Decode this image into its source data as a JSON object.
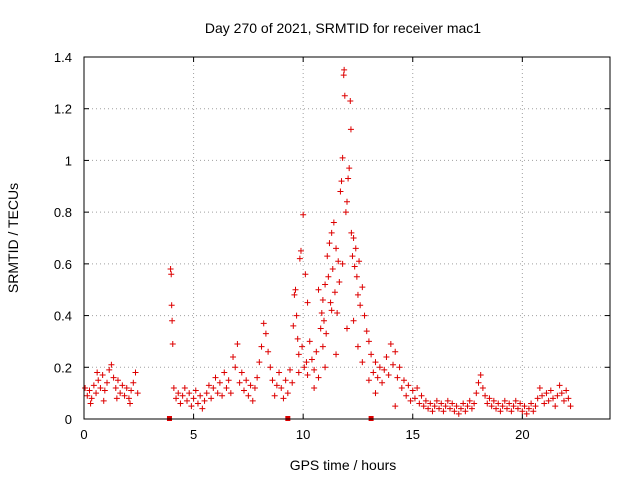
{
  "chart_data": {
    "type": "scatter",
    "title": "Day 270 of 2021, SRMTID for receiver mac1",
    "xlabel": "GPS time / hours",
    "ylabel": "SRMTID / TECUs",
    "xlim": [
      0,
      24
    ],
    "ylim": [
      0,
      1.4
    ],
    "xticks": [
      0,
      5,
      10,
      15,
      20
    ],
    "yticks": [
      0,
      0.2,
      0.4,
      0.6,
      0.8,
      1,
      1.2,
      1.4
    ],
    "xtick_labels": [
      "0",
      "5",
      "10",
      "15",
      "20"
    ],
    "ytick_labels": [
      "0",
      "0.2",
      "0.4",
      "0.6",
      "0.8",
      "1",
      "1.2",
      "1.4"
    ],
    "grid": true,
    "marker": "+",
    "color": "#dd0000",
    "data_gap_markers_x": [
      3.9,
      9.3,
      13.1
    ],
    "series": [
      {
        "name": "SRMTID",
        "points": [
          [
            0.05,
            0.12
          ],
          [
            0.15,
            0.09
          ],
          [
            0.25,
            0.11
          ],
          [
            0.35,
            0.08
          ],
          [
            0.45,
            0.13
          ],
          [
            0.55,
            0.1
          ],
          [
            0.65,
            0.15
          ],
          [
            0.75,
            0.12
          ],
          [
            0.85,
            0.17
          ],
          [
            0.95,
            0.11
          ],
          [
            1.05,
            0.14
          ],
          [
            1.15,
            0.19
          ],
          [
            1.25,
            0.21
          ],
          [
            1.35,
            0.16
          ],
          [
            1.45,
            0.12
          ],
          [
            1.55,
            0.15
          ],
          [
            1.65,
            0.1
          ],
          [
            1.75,
            0.13
          ],
          [
            1.85,
            0.09
          ],
          [
            1.95,
            0.12
          ],
          [
            2.05,
            0.08
          ],
          [
            2.15,
            0.11
          ],
          [
            2.25,
            0.14
          ],
          [
            2.35,
            0.18
          ],
          [
            2.45,
            0.1
          ],
          [
            0.3,
            0.06
          ],
          [
            0.9,
            0.07
          ],
          [
            1.5,
            0.08
          ],
          [
            2.1,
            0.06
          ],
          [
            0.6,
            0.18
          ],
          [
            3.95,
            0.58
          ],
          [
            3.98,
            0.56
          ],
          [
            4.0,
            0.44
          ],
          [
            4.02,
            0.38
          ],
          [
            4.05,
            0.29
          ],
          [
            4.1,
            0.12
          ],
          [
            4.2,
            0.08
          ],
          [
            4.3,
            0.1
          ],
          [
            4.4,
            0.06
          ],
          [
            4.5,
            0.09
          ],
          [
            4.6,
            0.12
          ],
          [
            4.7,
            0.07
          ],
          [
            4.8,
            0.1
          ],
          [
            4.9,
            0.05
          ],
          [
            5.0,
            0.08
          ],
          [
            5.1,
            0.11
          ],
          [
            5.2,
            0.06
          ],
          [
            5.3,
            0.09
          ],
          [
            5.4,
            0.04
          ],
          [
            5.5,
            0.07
          ],
          [
            5.6,
            0.1
          ],
          [
            5.7,
            0.13
          ],
          [
            5.8,
            0.08
          ],
          [
            5.9,
            0.12
          ],
          [
            6.0,
            0.16
          ],
          [
            6.1,
            0.1
          ],
          [
            6.2,
            0.14
          ],
          [
            6.3,
            0.09
          ],
          [
            6.4,
            0.18
          ],
          [
            6.5,
            0.12
          ],
          [
            6.6,
            0.15
          ],
          [
            6.7,
            0.1
          ],
          [
            6.8,
            0.24
          ],
          [
            6.9,
            0.2
          ],
          [
            7.0,
            0.29
          ],
          [
            7.1,
            0.14
          ],
          [
            7.2,
            0.18
          ],
          [
            7.3,
            0.11
          ],
          [
            7.4,
            0.15
          ],
          [
            7.5,
            0.09
          ],
          [
            7.6,
            0.13
          ],
          [
            7.7,
            0.07
          ],
          [
            7.8,
            0.12
          ],
          [
            7.9,
            0.16
          ],
          [
            8.0,
            0.22
          ],
          [
            8.1,
            0.28
          ],
          [
            8.2,
            0.37
          ],
          [
            8.3,
            0.33
          ],
          [
            8.4,
            0.26
          ],
          [
            8.5,
            0.2
          ],
          [
            8.6,
            0.15
          ],
          [
            8.7,
            0.09
          ],
          [
            8.8,
            0.13
          ],
          [
            8.9,
            0.18
          ],
          [
            9.0,
            0.12
          ],
          [
            9.1,
            0.08
          ],
          [
            9.2,
            0.15
          ],
          [
            9.3,
            0.1
          ],
          [
            9.4,
            0.19
          ],
          [
            9.5,
            0.14
          ],
          [
            9.55,
            0.36
          ],
          [
            9.6,
            0.48
          ],
          [
            9.65,
            0.5
          ],
          [
            9.7,
            0.4
          ],
          [
            9.75,
            0.31
          ],
          [
            9.8,
            0.25
          ],
          [
            9.85,
            0.62
          ],
          [
            9.9,
            0.65
          ],
          [
            9.95,
            0.28
          ],
          [
            10.0,
            0.79
          ],
          [
            10.05,
            0.2
          ],
          [
            10.1,
            0.56
          ],
          [
            10.15,
            0.22
          ],
          [
            10.2,
            0.17
          ],
          [
            10.3,
            0.3
          ],
          [
            10.4,
            0.23
          ],
          [
            10.5,
            0.19
          ],
          [
            10.6,
            0.26
          ],
          [
            10.7,
            0.16
          ],
          [
            10.8,
            0.35
          ],
          [
            10.85,
            0.41
          ],
          [
            10.9,
            0.46
          ],
          [
            10.95,
            0.38
          ],
          [
            11.0,
            0.52
          ],
          [
            11.05,
            0.33
          ],
          [
            11.1,
            0.63
          ],
          [
            11.15,
            0.55
          ],
          [
            11.2,
            0.68
          ],
          [
            11.25,
            0.45
          ],
          [
            11.3,
            0.72
          ],
          [
            11.35,
            0.58
          ],
          [
            11.4,
            0.76
          ],
          [
            11.45,
            0.49
          ],
          [
            11.5,
            0.66
          ],
          [
            11.55,
            0.41
          ],
          [
            11.6,
            0.61
          ],
          [
            11.65,
            0.53
          ],
          [
            11.7,
            0.88
          ],
          [
            11.75,
            0.92
          ],
          [
            11.8,
            1.01
          ],
          [
            11.85,
            1.33
          ],
          [
            11.87,
            1.35
          ],
          [
            11.9,
            1.25
          ],
          [
            11.95,
            0.8
          ],
          [
            12.0,
            0.84
          ],
          [
            12.05,
            0.93
          ],
          [
            12.1,
            0.97
          ],
          [
            12.15,
            1.23
          ],
          [
            12.18,
            1.12
          ],
          [
            12.2,
            0.72
          ],
          [
            12.25,
            0.63
          ],
          [
            12.3,
            0.7
          ],
          [
            12.35,
            0.59
          ],
          [
            12.4,
            0.66
          ],
          [
            12.45,
            0.55
          ],
          [
            12.5,
            0.48
          ],
          [
            12.55,
            0.61
          ],
          [
            12.6,
            0.44
          ],
          [
            12.7,
            0.51
          ],
          [
            12.8,
            0.4
          ],
          [
            12.9,
            0.34
          ],
          [
            13.0,
            0.3
          ],
          [
            13.1,
            0.25
          ],
          [
            13.2,
            0.18
          ],
          [
            13.3,
            0.22
          ],
          [
            13.4,
            0.16
          ],
          [
            13.5,
            0.2
          ],
          [
            13.6,
            0.14
          ],
          [
            13.7,
            0.19
          ],
          [
            13.8,
            0.24
          ],
          [
            13.9,
            0.17
          ],
          [
            14.0,
            0.29
          ],
          [
            14.1,
            0.21
          ],
          [
            14.2,
            0.26
          ],
          [
            14.3,
            0.16
          ],
          [
            14.4,
            0.2
          ],
          [
            14.5,
            0.12
          ],
          [
            14.6,
            0.15
          ],
          [
            14.7,
            0.09
          ],
          [
            14.8,
            0.13
          ],
          [
            14.9,
            0.07
          ],
          [
            15.0,
            0.11
          ],
          [
            15.1,
            0.08
          ],
          [
            15.2,
            0.12
          ],
          [
            15.3,
            0.06
          ],
          [
            15.4,
            0.09
          ],
          [
            15.5,
            0.05
          ],
          [
            15.6,
            0.07
          ],
          [
            15.7,
            0.04
          ],
          [
            15.8,
            0.06
          ],
          [
            15.9,
            0.03
          ],
          [
            16.0,
            0.05
          ],
          [
            16.1,
            0.07
          ],
          [
            16.2,
            0.04
          ],
          [
            16.3,
            0.06
          ],
          [
            16.4,
            0.03
          ],
          [
            16.5,
            0.05
          ],
          [
            16.6,
            0.07
          ],
          [
            16.7,
            0.04
          ],
          [
            16.8,
            0.06
          ],
          [
            16.9,
            0.03
          ],
          [
            17.0,
            0.05
          ],
          [
            17.1,
            0.02
          ],
          [
            17.2,
            0.04
          ],
          [
            17.3,
            0.06
          ],
          [
            17.4,
            0.03
          ],
          [
            17.5,
            0.05
          ],
          [
            17.6,
            0.07
          ],
          [
            17.7,
            0.04
          ],
          [
            17.8,
            0.06
          ],
          [
            17.9,
            0.1
          ],
          [
            18.0,
            0.14
          ],
          [
            18.1,
            0.17
          ],
          [
            18.2,
            0.12
          ],
          [
            18.3,
            0.09
          ],
          [
            18.4,
            0.06
          ],
          [
            18.5,
            0.08
          ],
          [
            18.6,
            0.05
          ],
          [
            18.7,
            0.07
          ],
          [
            18.8,
            0.04
          ],
          [
            18.9,
            0.06
          ],
          [
            19.0,
            0.03
          ],
          [
            19.1,
            0.05
          ],
          [
            19.2,
            0.07
          ],
          [
            19.3,
            0.04
          ],
          [
            19.4,
            0.06
          ],
          [
            19.5,
            0.03
          ],
          [
            19.6,
            0.05
          ],
          [
            19.7,
            0.07
          ],
          [
            19.8,
            0.04
          ],
          [
            19.9,
            0.06
          ],
          [
            20.0,
            0.03
          ],
          [
            20.1,
            0.05
          ],
          [
            20.2,
            0.02
          ],
          [
            20.3,
            0.04
          ],
          [
            20.4,
            0.06
          ],
          [
            20.5,
            0.03
          ],
          [
            20.6,
            0.05
          ],
          [
            20.7,
            0.08
          ],
          [
            20.8,
            0.12
          ],
          [
            20.9,
            0.09
          ],
          [
            21.0,
            0.06
          ],
          [
            21.1,
            0.1
          ],
          [
            21.2,
            0.07
          ],
          [
            21.3,
            0.11
          ],
          [
            21.4,
            0.08
          ],
          [
            21.5,
            0.05
          ],
          [
            21.6,
            0.09
          ],
          [
            21.7,
            0.13
          ],
          [
            21.8,
            0.1
          ],
          [
            21.9,
            0.07
          ],
          [
            22.0,
            0.11
          ],
          [
            22.1,
            0.08
          ],
          [
            22.2,
            0.05
          ],
          [
            10.5,
            0.12
          ],
          [
            11.0,
            0.2
          ],
          [
            11.5,
            0.25
          ],
          [
            12.0,
            0.35
          ],
          [
            12.5,
            0.28
          ],
          [
            13.0,
            0.15
          ],
          [
            10.2,
            0.45
          ],
          [
            10.7,
            0.5
          ],
          [
            11.3,
            0.42
          ],
          [
            11.8,
            0.6
          ],
          [
            12.3,
            0.38
          ],
          [
            9.8,
            0.18
          ],
          [
            10.9,
            0.28
          ],
          [
            12.7,
            0.22
          ],
          [
            13.3,
            0.1
          ],
          [
            14.2,
            0.05
          ]
        ]
      }
    ]
  }
}
